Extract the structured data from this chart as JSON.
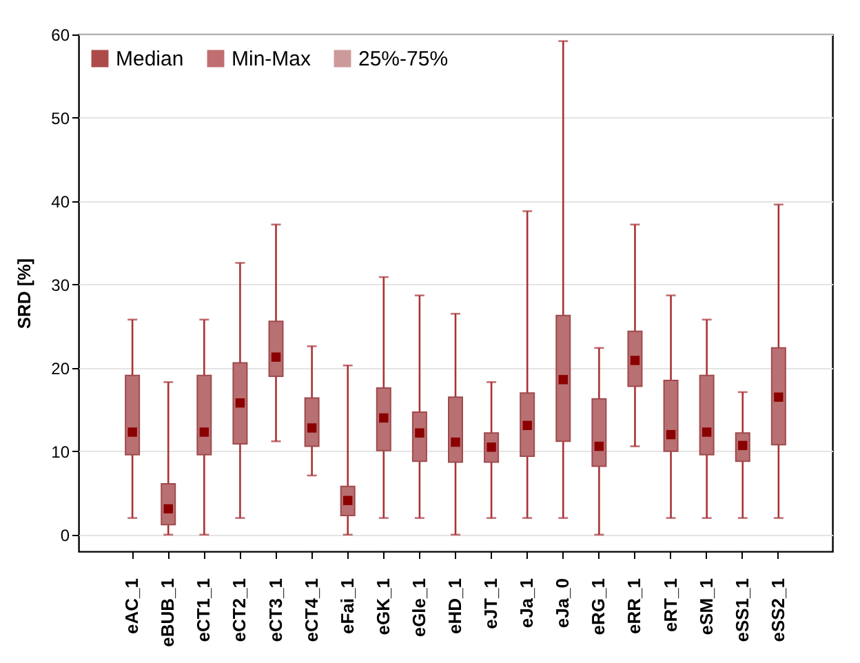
{
  "chart_data": {
    "type": "box",
    "ylabel": "SRD [%]",
    "categories": [
      "eAC_1",
      "eBUB_1",
      "eCT1_1",
      "eCT2_1",
      "eCT3_1",
      "eCT4_1",
      "eFai_1",
      "eGK_1",
      "eGle_1",
      "eHD_1",
      "eJT_1",
      "eJa_1",
      "eJa_0",
      "eRG_1",
      "eRR_1",
      "eRT_1",
      "eSM_1",
      "eSS1_1",
      "eSS2_1"
    ],
    "series": [
      {
        "name": "25%-75%",
        "color": "#b87072",
        "boxes": [
          {
            "low": 2.0,
            "q1": 9.6,
            "q3": 19.1,
            "high": 25.8
          },
          {
            "low": 0,
            "q1": 1.2,
            "q3": 6.1,
            "high": 18.3
          },
          {
            "low": 0,
            "q1": 9.6,
            "q3": 19.1,
            "high": 25.8
          },
          {
            "low": 2.0,
            "q1": 10.9,
            "q3": 20.6,
            "high": 32.6
          },
          {
            "low": 11.2,
            "q1": 19.0,
            "q3": 25.6,
            "high": 37.2
          },
          {
            "low": 7.1,
            "q1": 10.6,
            "q3": 16.4,
            "high": 22.6
          },
          {
            "low": 0,
            "q1": 2.3,
            "q3": 5.8,
            "high": 20.3
          },
          {
            "low": 2.0,
            "q1": 10.1,
            "q3": 17.6,
            "high": 30.9
          },
          {
            "low": 2.0,
            "q1": 8.8,
            "q3": 14.7,
            "high": 28.7
          },
          {
            "low": 0,
            "q1": 8.7,
            "q3": 16.5,
            "high": 26.5
          },
          {
            "low": 2.0,
            "q1": 8.7,
            "q3": 12.2,
            "high": 18.3
          },
          {
            "low": 2.0,
            "q1": 9.4,
            "q3": 17.0,
            "high": 38.8
          },
          {
            "low": 2.0,
            "q1": 11.2,
            "q3": 26.3,
            "high": 59.2
          },
          {
            "low": 0,
            "q1": 8.2,
            "q3": 16.3,
            "high": 22.4
          },
          {
            "low": 10.6,
            "q1": 17.8,
            "q3": 24.4,
            "high": 37.2
          },
          {
            "low": 2.0,
            "q1": 10.0,
            "q3": 18.5,
            "high": 28.7
          },
          {
            "low": 2.0,
            "q1": 9.6,
            "q3": 19.1,
            "high": 25.8
          },
          {
            "low": 2.0,
            "q1": 8.8,
            "q3": 12.2,
            "high": 17.1
          },
          {
            "low": 2.0,
            "q1": 10.8,
            "q3": 22.4,
            "high": 39.6
          }
        ]
      },
      {
        "name": "Median",
        "type": "scatter",
        "color": "#8b0000",
        "marker": "square",
        "x": [
          "eAC_1",
          "eBUB_1",
          "eCT1_1",
          "eCT2_1",
          "eCT3_1",
          "eCT4_1",
          "eFai_1",
          "eGK_1",
          "eGle_1",
          "eHD_1",
          "eJT_1",
          "eJa_1",
          "eJa_0",
          "eRG_1",
          "eRR_1",
          "eRT_1",
          "eSM_1",
          "eSS1_1",
          "eSS2_1"
        ],
        "values": [
          12.3,
          3.1,
          12.3,
          15.8,
          21.3,
          12.8,
          4.1,
          14.0,
          12.2,
          11.1,
          10.5,
          13.1,
          18.6,
          10.6,
          20.9,
          12.0,
          12.3,
          10.7,
          16.5
        ]
      }
    ],
    "ylim": [
      -2,
      60
    ],
    "yticks": [
      0,
      10,
      20,
      30,
      40,
      50,
      60
    ],
    "grid": "y",
    "legend": "top left",
    "annotations": [
      "Min-Max"
    ]
  }
}
